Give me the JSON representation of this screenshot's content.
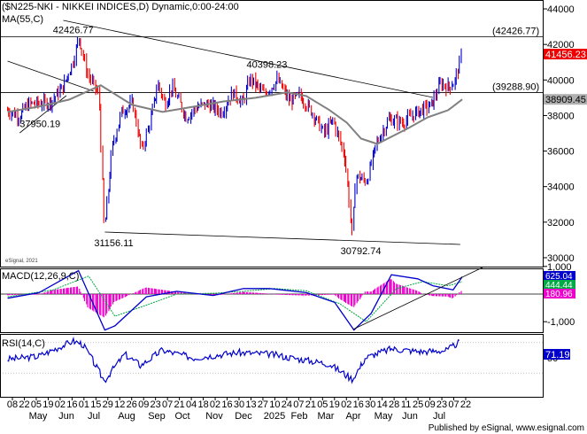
{
  "header": {
    "title": "($N225-NKI - NIKKEI INDICES,D) Dynamic,0:00-24:00",
    "ma_label": "MA(55,C)"
  },
  "chart_data": [
    {
      "type": "line",
      "panel": "price",
      "title": "($N225-NKI - NIKKEI INDICES,D) Dynamic,0:00-24:00",
      "ylim": [
        29500,
        44500
      ],
      "y_ticks": [
        "44000",
        "42000",
        "40000",
        "38000",
        "36000",
        "34000",
        "32000",
        "30000"
      ],
      "x_ticks": [
        "08",
        "22",
        "05",
        "19",
        "02",
        "16",
        "01",
        "15",
        "29",
        "12",
        "26",
        "09",
        "23",
        "07",
        "21",
        "04",
        "18",
        "02",
        "16",
        "30",
        "13",
        "27",
        "10",
        "24",
        "07",
        "21",
        "05",
        "19",
        "02",
        "16",
        "30",
        "14",
        "28",
        "11",
        "25",
        "09",
        "23",
        "07",
        "22"
      ],
      "month_labels": [
        "May",
        "Jun",
        "Jul",
        "Aug",
        "Sep",
        "Oct",
        "Nov",
        "Dec",
        "2025",
        "Feb",
        "Mar",
        "Apr",
        "May",
        "Jun",
        "Jul"
      ],
      "series": [
        {
          "name": "$N225-NKI",
          "x": [
            "2024-05-01",
            "2024-05-13",
            "2024-05-22",
            "2024-06-05",
            "2024-06-14",
            "2024-06-25",
            "2024-07-05",
            "2024-07-11",
            "2024-07-19",
            "2024-07-31",
            "2024-08-05",
            "2024-08-13",
            "2024-08-22",
            "2024-09-02",
            "2024-09-11",
            "2024-09-19",
            "2024-09-27",
            "2024-10-04",
            "2024-10-11",
            "2024-10-25",
            "2024-11-05",
            "2024-11-15",
            "2024-11-29",
            "2024-12-10",
            "2024-12-20",
            "2024-12-27",
            "2025-01-10",
            "2025-01-23",
            "2025-02-04",
            "2025-02-14",
            "2025-02-26",
            "2025-03-10",
            "2025-03-19",
            "2025-03-31",
            "2025-04-07",
            "2025-04-10",
            "2025-04-21",
            "2025-05-01",
            "2025-05-13",
            "2025-05-27",
            "2025-06-10",
            "2025-06-24",
            "2025-07-03",
            "2025-07-11",
            "2025-07-17",
            "2025-07-24"
          ],
          "close": [
            38300,
            37950,
            38650,
            38700,
            38800,
            39600,
            41000,
            42426,
            40400,
            39100,
            31456,
            36230,
            38200,
            38700,
            36000,
            37600,
            39800,
            38630,
            39600,
            37900,
            38500,
            38640,
            38200,
            39300,
            38700,
            40100,
            39200,
            40000,
            38800,
            39150,
            38200,
            37000,
            37750,
            35600,
            31136,
            34600,
            34300,
            36450,
            37800,
            37600,
            38200,
            38600,
            39800,
            39600,
            39900,
            41456
          ],
          "highlights": [
            {
              "label": "42426.77",
              "x": "2024-07-11"
            },
            {
              "label": "37950.19",
              "x": "2024-05-13"
            },
            {
              "label": "40398.23",
              "x": "2025-01-06"
            },
            {
              "label": "31156.11",
              "x": "2024-08-05"
            },
            {
              "label": "30792.74",
              "x": "2025-04-07"
            }
          ]
        },
        {
          "name": "MA(55,C)",
          "x": [
            "2024-05-01",
            "2024-06-01",
            "2024-07-01",
            "2024-08-01",
            "2024-09-01",
            "2024-10-01",
            "2024-11-01",
            "2024-12-01",
            "2025-01-01",
            "2025-02-01",
            "2025-02-20",
            "2025-03-15",
            "2025-04-01",
            "2025-04-15",
            "2025-05-01",
            "2025-06-01",
            "2025-06-20",
            "2025-07-10",
            "2025-07-24"
          ],
          "values": [
            38200,
            38500,
            38900,
            39700,
            38600,
            38200,
            38500,
            38800,
            39000,
            39300,
            39100,
            38300,
            37600,
            36700,
            36400,
            37300,
            37900,
            38300,
            38909
          ]
        }
      ],
      "resistance_labels": [
        "(42426.77)",
        "(39288.90)"
      ],
      "last_value_labels": [
        "41456.23",
        "38909.45"
      ],
      "watermark": "eSignal, 2021"
    },
    {
      "type": "line",
      "panel": "macd",
      "title": "MACD(12,26,9,C)",
      "y_ticks": [
        "1,000",
        "0",
        "-1,000"
      ],
      "series": [
        {
          "name": "MACD",
          "x": [
            "2024-05-01",
            "2024-06-01",
            "2024-07-10",
            "2024-08-05",
            "2024-08-15",
            "2024-09-15",
            "2024-10-15",
            "2024-11-20",
            "2024-12-20",
            "2025-01-15",
            "2025-02-20",
            "2025-03-20",
            "2025-04-08",
            "2025-04-25",
            "2025-05-15",
            "2025-06-10",
            "2025-06-25",
            "2025-07-15",
            "2025-07-24"
          ],
          "values": [
            -150,
            50,
            850,
            -1300,
            -1150,
            -100,
            100,
            -50,
            200,
            200,
            50,
            -300,
            -1300,
            -700,
            700,
            550,
            300,
            150,
            625
          ]
        },
        {
          "name": "Signal",
          "x": [
            "2024-05-01",
            "2024-06-15",
            "2024-07-20",
            "2024-08-15",
            "2024-09-15",
            "2024-10-15",
            "2024-11-20",
            "2024-12-20",
            "2025-01-20",
            "2025-02-20",
            "2025-03-25",
            "2025-04-20",
            "2025-05-20",
            "2025-06-15",
            "2025-07-10",
            "2025-07-24"
          ],
          "values": [
            -100,
            150,
            650,
            -800,
            -400,
            0,
            30,
            100,
            200,
            120,
            -350,
            -1000,
            200,
            450,
            300,
            444
          ]
        }
      ],
      "last_value_labels": [
        "625.04",
        "444.44",
        "180.96"
      ]
    },
    {
      "type": "line",
      "panel": "rsi",
      "title": "RSI(14,C)",
      "y_ticks": [
        "50"
      ],
      "series": [
        {
          "name": "RSI",
          "x": [
            "2024-05-01",
            "2024-06-01",
            "2024-07-05",
            "2024-07-15",
            "2024-08-05",
            "2024-08-25",
            "2024-09-10",
            "2024-10-01",
            "2024-11-01",
            "2024-12-15",
            "2025-01-15",
            "2025-02-15",
            "2025-03-15",
            "2025-04-07",
            "2025-04-20",
            "2025-05-15",
            "2025-06-15",
            "2025-07-10",
            "2025-07-22"
          ],
          "values": [
            48,
            52,
            72,
            68,
            20,
            55,
            40,
            60,
            50,
            57,
            55,
            48,
            42,
            22,
            50,
            62,
            58,
            60,
            71.19
          ]
        }
      ],
      "last_value_labels": [
        "71.19"
      ]
    }
  ],
  "footer": {
    "published": "Published by eSignal, www.esignal.com"
  }
}
